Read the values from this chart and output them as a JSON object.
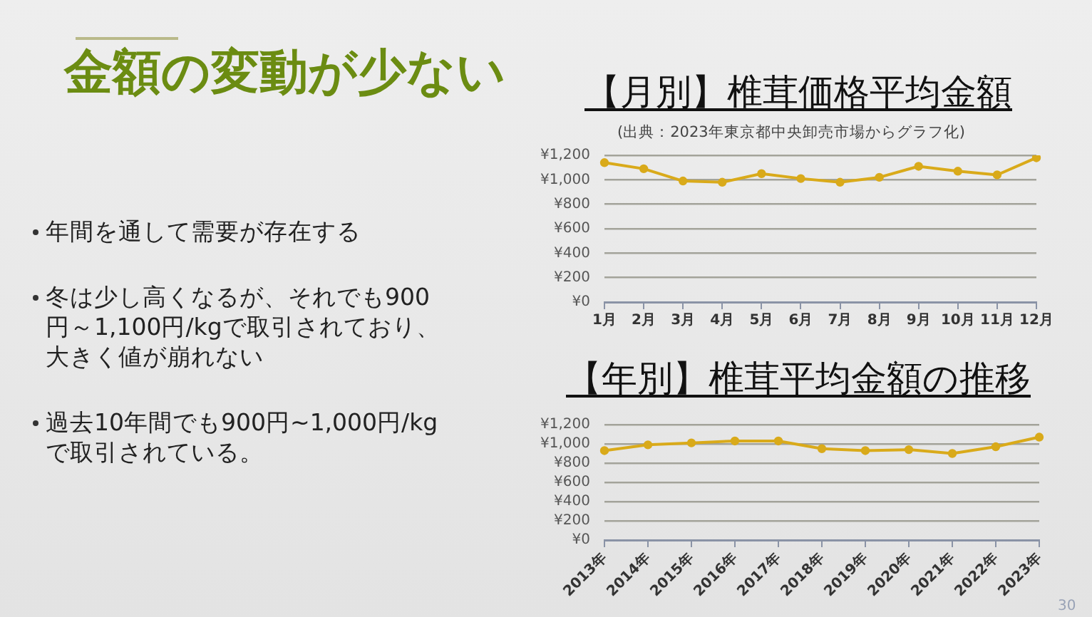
{
  "chart_data": [
    {
      "type": "other",
      "title": "金額の変動が少ない",
      "annotations": [
        "年間を通して需要が存在する",
        "冬は少し高くなるが、それでも900円～1,100円/kgで取引されており、大きく値が崩れない",
        "過去10年間でも900円~1,000円/kgで取引されている。"
      ]
    },
    {
      "type": "line",
      "title": "【月別】椎茸価格平均金額",
      "annotations": [
        "(出典：2023年東京都中央卸売市場からグラフ化)"
      ],
      "categories": [
        "1月",
        "2月",
        "3月",
        "4月",
        "5月",
        "6月",
        "7月",
        "8月",
        "9月",
        "10月",
        "11月",
        "12月"
      ],
      "values": [
        1140,
        1090,
        990,
        980,
        1050,
        1010,
        980,
        1020,
        1110,
        1070,
        1040,
        1180
      ],
      "color": "#d9aa1a",
      "ylim": [
        0,
        1200
      ],
      "yticks": [
        {
          "value": 0,
          "label": "¥0"
        },
        {
          "value": 200,
          "label": "¥200"
        },
        {
          "value": 400,
          "label": "¥400"
        },
        {
          "value": 600,
          "label": "¥600"
        },
        {
          "value": 800,
          "label": "¥800"
        },
        {
          "value": 1000,
          "label": "¥1,000"
        },
        {
          "value": 1200,
          "label": "¥1,200"
        }
      ],
      "grid": "y",
      "marker": "circle"
    },
    {
      "type": "line",
      "title": "【年別】椎茸平均金額の推移",
      "annotations": [
        "30"
      ],
      "categories": [
        "2013年",
        "2014年",
        "2015年",
        "2016年",
        "2017年",
        "2018年",
        "2019年",
        "2020年",
        "2021年",
        "2022年",
        "2023年"
      ],
      "values": [
        930,
        990,
        1010,
        1030,
        1030,
        950,
        930,
        940,
        900,
        970,
        1070
      ],
      "color": "#d9aa1a",
      "ylim": [
        0,
        1200
      ],
      "yticks": [
        {
          "value": 0,
          "label": "¥0"
        },
        {
          "value": 200,
          "label": "¥200"
        },
        {
          "value": 400,
          "label": "¥400"
        },
        {
          "value": 600,
          "label": "¥600"
        },
        {
          "value": 800,
          "label": "¥800"
        },
        {
          "value": 1000,
          "label": "¥1,000"
        },
        {
          "value": 1200,
          "label": "¥1,200"
        }
      ],
      "grid": "y",
      "marker": "circle"
    }
  ]
}
